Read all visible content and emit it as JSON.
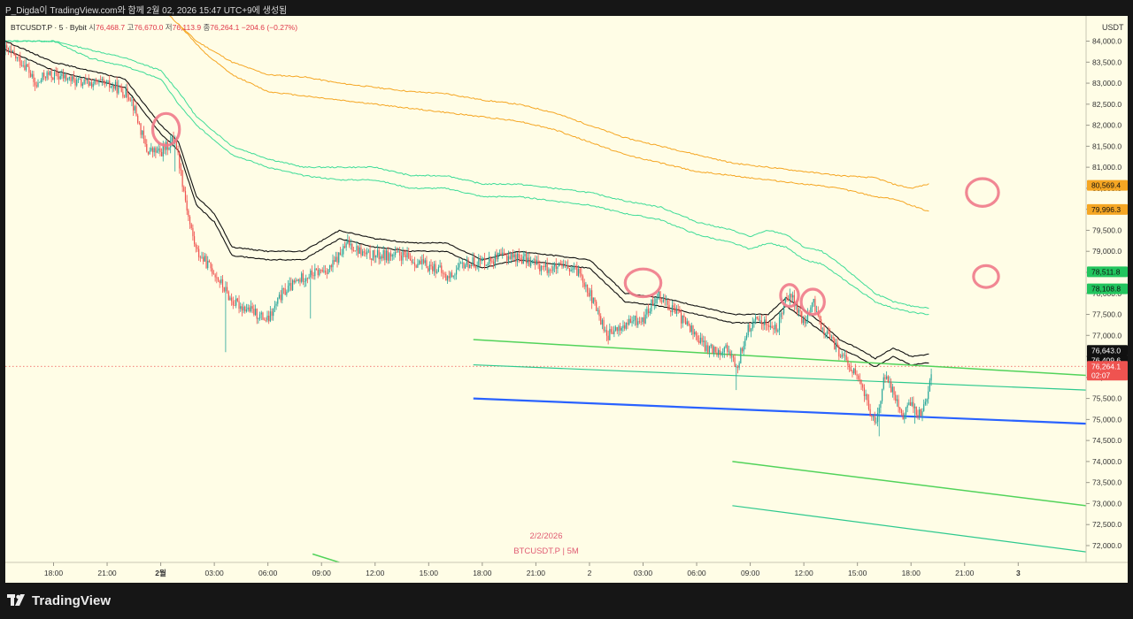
{
  "attribution": "P_Digda이 TradingView.com와 함께 2월 02, 2026 15:47 UTC+9에 생성됨",
  "legend": {
    "symbol": "BTCUSDT.P · 5 · Bybit",
    "open_label": "시",
    "open": "76,468.7",
    "high_label": "고",
    "high": "76,670.0",
    "low_label": "저",
    "low": "76,113.9",
    "close_label": "종",
    "close": "76,264.1",
    "change": "−204.6 (−0.27%)"
  },
  "watermark": {
    "date": "2/2/2026",
    "symbol": "BTCUSDT.P | 5M"
  },
  "brand": "TradingView",
  "colors": {
    "background": "#fffde6",
    "up_candle": "#26a69a",
    "down_candle": "#ef5350",
    "orange_band": "#f5a623",
    "green_band": "#3ddc97",
    "black_band": "#111111",
    "trend_green": "#52d35a",
    "trend_teal": "#2ec98e",
    "trend_blue": "#2962ff",
    "annotation": "#f07a8a"
  },
  "chart_data": {
    "type": "candlestick",
    "symbol": "BTCUSDT.P",
    "interval": "5",
    "exchange": "Bybit",
    "currency": "USDT",
    "ylim": [
      71600,
      84600
    ],
    "y_ticks": [
      "72,000.0",
      "72,500.0",
      "73,000.0",
      "73,500.0",
      "74,000.0",
      "74,500.0",
      "75,000.0",
      "75,500.0",
      "76,000.0",
      "76,500.0",
      "77,000.0",
      "77,500.0",
      "78,000.0",
      "78,500.0",
      "79,000.0",
      "79,500.0",
      "80,000.0",
      "80,500.0",
      "81,000.0",
      "81,500.0",
      "82,000.0",
      "82,500.0",
      "83,000.0",
      "83,500.0",
      "84,000.0"
    ],
    "x_ticks": [
      {
        "label": "18:00",
        "h": 18
      },
      {
        "label": "21:00",
        "h": 21
      },
      {
        "label": "2월",
        "h": 24,
        "bold": true
      },
      {
        "label": "03:00",
        "h": 27
      },
      {
        "label": "06:00",
        "h": 30
      },
      {
        "label": "09:00",
        "h": 33
      },
      {
        "label": "12:00",
        "h": 36
      },
      {
        "label": "15:00",
        "h": 39
      },
      {
        "label": "18:00",
        "h": 42
      },
      {
        "label": "21:00",
        "h": 45
      },
      {
        "label": "2",
        "h": 48
      },
      {
        "label": "03:00",
        "h": 51
      },
      {
        "label": "06:00",
        "h": 54
      },
      {
        "label": "09:00",
        "h": 57
      },
      {
        "label": "12:00",
        "h": 60
      },
      {
        "label": "15:00",
        "h": 63
      },
      {
        "label": "18:00",
        "h": 66
      },
      {
        "label": "21:00",
        "h": 69
      },
      {
        "label": "3",
        "h": 72,
        "bold": true
      }
    ],
    "x_range_hours": [
      15.3,
      75.8
    ],
    "price_key_points": [
      [
        15.3,
        83800
      ],
      [
        16.5,
        83400
      ],
      [
        17.0,
        82900
      ],
      [
        17.5,
        83200
      ],
      [
        18.5,
        83150
      ],
      [
        19.5,
        83000
      ],
      [
        20.5,
        83000
      ],
      [
        21.5,
        82900
      ],
      [
        22.3,
        82700
      ],
      [
        22.8,
        82000
      ],
      [
        23.2,
        81400
      ],
      [
        24.0,
        81350
      ],
      [
        24.8,
        81700
      ],
      [
        25.2,
        80700
      ],
      [
        25.6,
        79700
      ],
      [
        26.0,
        79000
      ],
      [
        27.0,
        78500
      ],
      [
        28.0,
        77800
      ],
      [
        29.0,
        77600
      ],
      [
        30.0,
        77350
      ],
      [
        30.8,
        78000
      ],
      [
        32.0,
        78400
      ],
      [
        33.5,
        78600
      ],
      [
        34.5,
        79200
      ],
      [
        35.5,
        78900
      ],
      [
        36.5,
        78900
      ],
      [
        37.5,
        78900
      ],
      [
        38.5,
        78700
      ],
      [
        39.5,
        78600
      ],
      [
        40.0,
        78350
      ],
      [
        41.0,
        78700
      ],
      [
        42.5,
        78800
      ],
      [
        43.5,
        78900
      ],
      [
        44.5,
        78800
      ],
      [
        45.5,
        78600
      ],
      [
        46.5,
        78600
      ],
      [
        47.5,
        78500
      ],
      [
        48.5,
        77500
      ],
      [
        49.0,
        77000
      ],
      [
        50.5,
        77350
      ],
      [
        51.0,
        77350
      ],
      [
        51.8,
        78000
      ],
      [
        52.5,
        77700
      ],
      [
        53.5,
        77250
      ],
      [
        54.5,
        76700
      ],
      [
        55.2,
        76650
      ],
      [
        55.8,
        76700
      ],
      [
        56.2,
        76150
      ],
      [
        56.8,
        77100
      ],
      [
        57.5,
        77400
      ],
      [
        58.5,
        77100
      ],
      [
        59.0,
        78000
      ],
      [
        59.4,
        77850
      ],
      [
        60.0,
        77250
      ],
      [
        60.5,
        77800
      ],
      [
        61.0,
        77200
      ],
      [
        62.0,
        76600
      ],
      [
        63.0,
        76000
      ],
      [
        63.5,
        75500
      ],
      [
        64.0,
        74800
      ],
      [
        64.5,
        76000
      ],
      [
        65.0,
        75700
      ],
      [
        65.5,
        75100
      ],
      [
        66.0,
        75400
      ],
      [
        66.5,
        75100
      ],
      [
        67.0,
        75700
      ],
      [
        67.2,
        76400
      ]
    ],
    "black_band_top": [
      [
        15.3,
        84000
      ],
      [
        18,
        83500
      ],
      [
        22,
        83100
      ],
      [
        24,
        82000
      ],
      [
        25,
        81600
      ],
      [
        26,
        80300
      ],
      [
        27,
        79900
      ],
      [
        28,
        79100
      ],
      [
        30,
        79000
      ],
      [
        32,
        79000
      ],
      [
        34,
        79500
      ],
      [
        36,
        79300
      ],
      [
        38,
        79200
      ],
      [
        40,
        79200
      ],
      [
        42,
        78800
      ],
      [
        44,
        79000
      ],
      [
        46,
        78900
      ],
      [
        48,
        78800
      ],
      [
        50,
        78000
      ],
      [
        52,
        77900
      ],
      [
        54,
        77700
      ],
      [
        56,
        77500
      ],
      [
        58,
        77500
      ],
      [
        59,
        77900
      ],
      [
        61,
        77300
      ],
      [
        62,
        76900
      ],
      [
        63,
        76700
      ],
      [
        64,
        76450
      ],
      [
        65,
        76700
      ],
      [
        66,
        76500
      ],
      [
        67,
        76550
      ]
    ],
    "black_band_bottom": [
      [
        15.3,
        83800
      ],
      [
        18,
        83300
      ],
      [
        22,
        82900
      ],
      [
        24,
        81800
      ],
      [
        25,
        81400
      ],
      [
        26,
        80100
      ],
      [
        27,
        79700
      ],
      [
        28,
        78900
      ],
      [
        30,
        78800
      ],
      [
        32,
        78800
      ],
      [
        34,
        79300
      ],
      [
        36,
        79100
      ],
      [
        38,
        79000
      ],
      [
        40,
        79000
      ],
      [
        42,
        78600
      ],
      [
        44,
        78800
      ],
      [
        46,
        78700
      ],
      [
        48,
        78600
      ],
      [
        50,
        77800
      ],
      [
        52,
        77700
      ],
      [
        54,
        77500
      ],
      [
        56,
        77300
      ],
      [
        58,
        77300
      ],
      [
        59,
        77700
      ],
      [
        61,
        77100
      ],
      [
        62,
        76700
      ],
      [
        63,
        76500
      ],
      [
        64,
        76250
      ],
      [
        65,
        76500
      ],
      [
        66,
        76300
      ],
      [
        67,
        76350
      ]
    ],
    "green_band_top": [
      [
        15.3,
        84000
      ],
      [
        18,
        84000
      ],
      [
        20,
        83800
      ],
      [
        22,
        83600
      ],
      [
        24,
        83300
      ],
      [
        25,
        82800
      ],
      [
        26,
        82200
      ],
      [
        28,
        81500
      ],
      [
        30,
        81200
      ],
      [
        32,
        81000
      ],
      [
        34,
        81000
      ],
      [
        36,
        81000
      ],
      [
        38,
        80800
      ],
      [
        40,
        80800
      ],
      [
        42,
        80600
      ],
      [
        44,
        80600
      ],
      [
        46,
        80500
      ],
      [
        48,
        80400
      ],
      [
        50,
        80200
      ],
      [
        52,
        80050
      ],
      [
        54,
        79700
      ],
      [
        56,
        79500
      ],
      [
        57,
        79350
      ],
      [
        58,
        79500
      ],
      [
        59,
        79400
      ],
      [
        60,
        79100
      ],
      [
        61,
        79000
      ],
      [
        62,
        78700
      ],
      [
        63,
        78350
      ],
      [
        64,
        78000
      ],
      [
        65,
        77800
      ],
      [
        66,
        77700
      ],
      [
        67,
        77650
      ]
    ],
    "green_band_bottom": [
      [
        15.3,
        84000
      ],
      [
        18,
        84000
      ],
      [
        20,
        83600
      ],
      [
        22,
        83400
      ],
      [
        24,
        83100
      ],
      [
        25,
        82500
      ],
      [
        26,
        82000
      ],
      [
        28,
        81300
      ],
      [
        30,
        81000
      ],
      [
        32,
        80800
      ],
      [
        34,
        80700
      ],
      [
        36,
        80700
      ],
      [
        38,
        80500
      ],
      [
        40,
        80500
      ],
      [
        42,
        80300
      ],
      [
        44,
        80300
      ],
      [
        46,
        80200
      ],
      [
        48,
        80100
      ],
      [
        50,
        79900
      ],
      [
        52,
        79750
      ],
      [
        54,
        79400
      ],
      [
        56,
        79200
      ],
      [
        57,
        79050
      ],
      [
        58,
        79200
      ],
      [
        59,
        79100
      ],
      [
        60,
        78800
      ],
      [
        61,
        78700
      ],
      [
        62,
        78400
      ],
      [
        63,
        78100
      ],
      [
        64,
        77800
      ],
      [
        65,
        77650
      ],
      [
        66,
        77550
      ],
      [
        67,
        77500
      ]
    ],
    "orange_band_top": [
      [
        24.5,
        84600
      ],
      [
        26,
        84000
      ],
      [
        28,
        83500
      ],
      [
        30,
        83200
      ],
      [
        32,
        83150
      ],
      [
        34,
        83000
      ],
      [
        36,
        82900
      ],
      [
        38,
        82800
      ],
      [
        40,
        82750
      ],
      [
        42,
        82600
      ],
      [
        44,
        82500
      ],
      [
        46,
        82300
      ],
      [
        48,
        82000
      ],
      [
        50,
        81700
      ],
      [
        52,
        81500
      ],
      [
        54,
        81300
      ],
      [
        56,
        81100
      ],
      [
        58,
        81000
      ],
      [
        60,
        80900
      ],
      [
        62,
        80800
      ],
      [
        64,
        80750
      ],
      [
        65,
        80600
      ],
      [
        66,
        80500
      ],
      [
        67,
        80600
      ]
    ],
    "orange_band_bottom": [
      [
        25.0,
        84400
      ],
      [
        26.5,
        83700
      ],
      [
        28,
        83200
      ],
      [
        30,
        82800
      ],
      [
        32,
        82700
      ],
      [
        34,
        82600
      ],
      [
        36,
        82500
      ],
      [
        38,
        82400
      ],
      [
        40,
        82300
      ],
      [
        42,
        82200
      ],
      [
        44,
        82100
      ],
      [
        46,
        81900
      ],
      [
        48,
        81600
      ],
      [
        50,
        81300
      ],
      [
        52,
        81100
      ],
      [
        54,
        80900
      ],
      [
        56,
        80800
      ],
      [
        58,
        80700
      ],
      [
        60,
        80600
      ],
      [
        62,
        80500
      ],
      [
        64,
        80300
      ],
      [
        65,
        80250
      ],
      [
        66,
        80100
      ],
      [
        67,
        79950
      ]
    ],
    "trend_lines": [
      {
        "color": "trend_green",
        "width": 1.5,
        "from": [
          41.5,
          76900
        ],
        "to": [
          75.8,
          76050
        ]
      },
      {
        "color": "trend_teal",
        "width": 1.2,
        "from": [
          41.5,
          76300
        ],
        "to": [
          75.8,
          75700
        ]
      },
      {
        "color": "trend_blue",
        "width": 2.2,
        "from": [
          41.5,
          75500
        ],
        "to": [
          75.8,
          74900
        ]
      },
      {
        "color": "trend_green",
        "width": 1.5,
        "from": [
          56.0,
          74000
        ],
        "to": [
          75.8,
          72950
        ]
      },
      {
        "color": "trend_teal",
        "width": 1.2,
        "from": [
          56.0,
          72950
        ],
        "to": [
          75.8,
          71850
        ]
      },
      {
        "color": "trend_green",
        "width": 1.5,
        "from": [
          32.5,
          71800
        ],
        "to": [
          34.0,
          71600
        ]
      }
    ],
    "circle_marks": [
      {
        "h": 24.3,
        "price": 81900,
        "rx": 0.75,
        "rp": 380
      },
      {
        "h": 51.0,
        "price": 78250,
        "rx": 1.0,
        "rp": 330
      },
      {
        "h": 59.2,
        "price": 77950,
        "rx": 0.5,
        "rp": 260
      },
      {
        "h": 60.5,
        "price": 77800,
        "rx": 0.65,
        "rp": 300
      },
      {
        "h": 70.0,
        "price": 80400,
        "rx": 0.9,
        "rp": 330
      },
      {
        "h": 70.2,
        "price": 78400,
        "rx": 0.7,
        "rp": 260
      }
    ],
    "last_price_line": 76264.1,
    "price_labels": [
      {
        "text": "80,569.4",
        "price": 80569.4,
        "bg": "#f5a623",
        "fg": "#111111"
      },
      {
        "text": "79,996.3",
        "price": 79996.3,
        "bg": "#f5a623",
        "fg": "#111111"
      },
      {
        "text": "78,511.8",
        "price": 78511.8,
        "bg": "#22c55e",
        "fg": "#111111"
      },
      {
        "text": "78,108.8",
        "price": 78108.8,
        "bg": "#22c55e",
        "fg": "#111111"
      },
      {
        "text": "76,643.0",
        "price": 76643.0,
        "bg": "#111111",
        "fg": "#ffffff"
      },
      {
        "text": "76,409.6",
        "price": 76409.6,
        "bg": "#111111",
        "fg": "#ffffff"
      },
      {
        "text": "76,264.1",
        "price": 76264.1,
        "bg": "#ef5350",
        "fg": "#ffffff",
        "sub": "02:07"
      }
    ]
  }
}
